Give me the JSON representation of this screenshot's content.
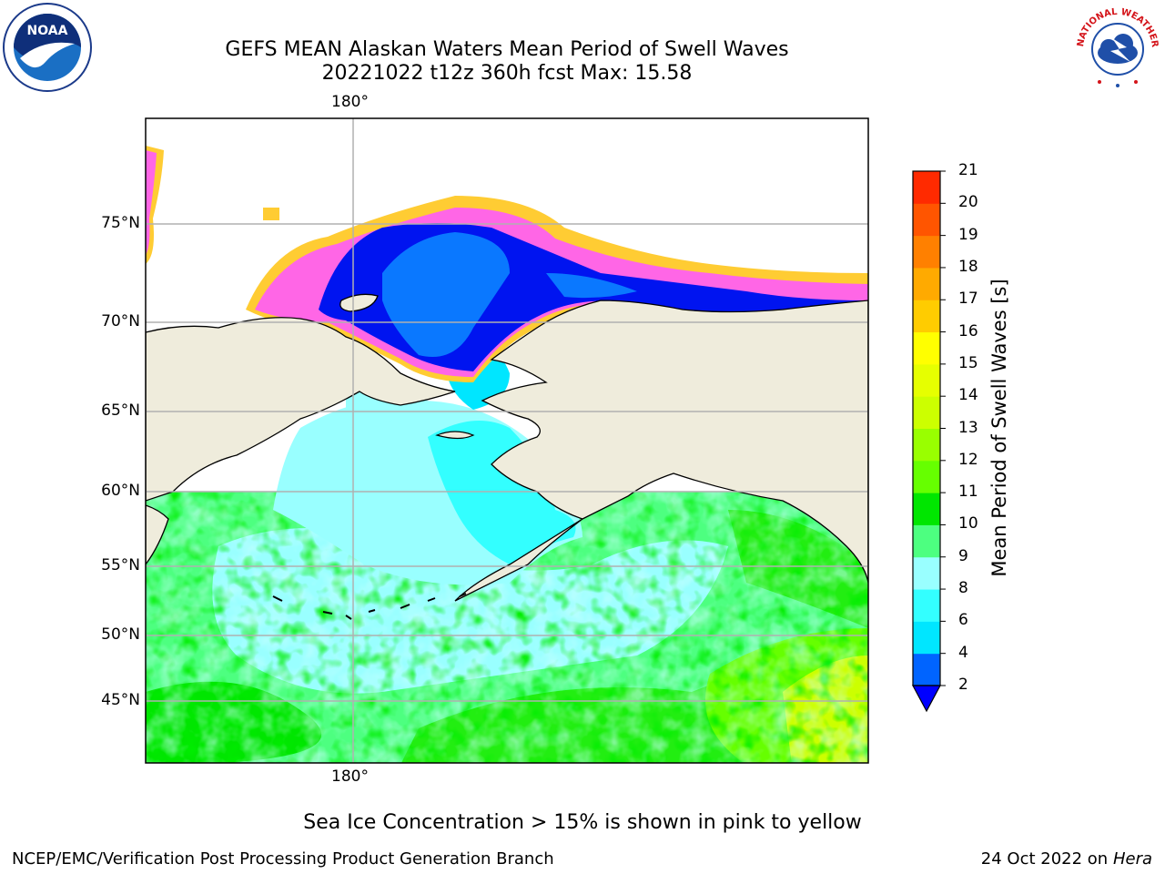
{
  "title": {
    "line1": "GEFS MEAN Alaskan Waters Mean Period of Swell Waves",
    "line2": "20221022 t12z 360h fcst   Max: 15.58"
  },
  "axes": {
    "lon_top": "180°",
    "lon_bottom": "180°",
    "lat_labels": [
      "75°N",
      "70°N",
      "65°N",
      "60°N",
      "55°N",
      "50°N",
      "45°N"
    ]
  },
  "colorbar": {
    "label": "Mean Period of Swell Waves [s]",
    "ticks": [
      "2",
      "4",
      "6",
      "8",
      "9",
      "10",
      "11",
      "12",
      "13",
      "14",
      "15",
      "16",
      "17",
      "18",
      "19",
      "20",
      "21"
    ],
    "colors": [
      "#0064ff",
      "#00e6ff",
      "#33ffff",
      "#99ffff",
      "#4dff80",
      "#00e600",
      "#66ff00",
      "#99ff00",
      "#ccff00",
      "#e6ff00",
      "#ffff00",
      "#ffcc00",
      "#ffaa00",
      "#ff8000",
      "#ff5500",
      "#ff2a00"
    ],
    "under_color": "#0000ff"
  },
  "map_colors": {
    "land": "#efecdc",
    "ice_pink": "#ff66e6",
    "ice_yellow": "#ffcc33",
    "deep_blue": "#0014f0",
    "mid_blue": "#0a78ff"
  },
  "logos": {
    "left_text": "NOAA",
    "right_text": "NATIONAL WEATHER SERVICE"
  },
  "footer": {
    "note": "Sea Ice Concentration > 15% is shown in pink to yellow",
    "left": "NCEP/EMC/Verification Post Processing Product Generation Branch",
    "right_prefix": "24 Oct 2022 on ",
    "right_machine": "Hera"
  }
}
